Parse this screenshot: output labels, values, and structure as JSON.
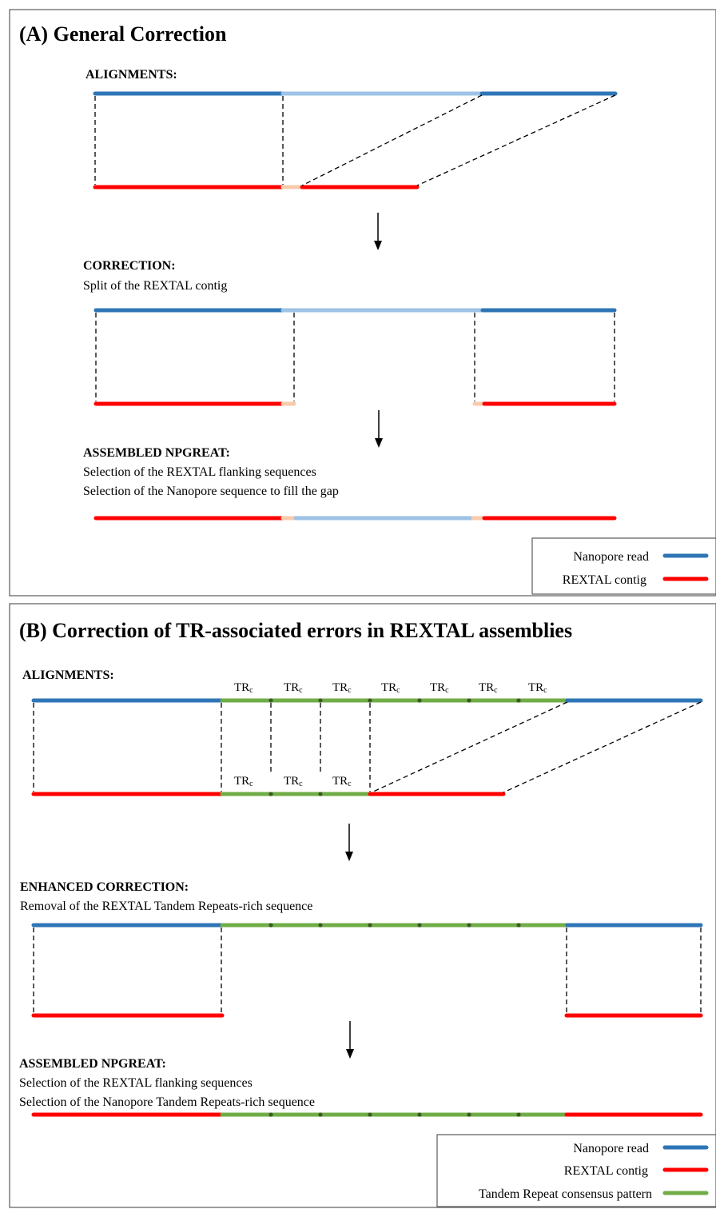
{
  "colors": {
    "nanopore": "#2e75b6",
    "nanopore_light": "#9dc3e6",
    "rextal": "#ff0000",
    "rextal_light": "#f8cbad",
    "tandem_repeat": "#70ad47",
    "tr_node": "#3a5a24",
    "dashed": "#000000",
    "panel_border": "#595959"
  },
  "panel_a": {
    "title": "(A) General Correction",
    "alignments_heading": "ALIGNMENTS:",
    "correction_heading": "CORRECTION:",
    "correction_text": "Split of the REXTAL contig",
    "assembled_heading": "ASSEMBLED NPGREAT:",
    "assembled_line1": "Selection of the REXTAL flanking sequences",
    "assembled_line2": "Selection of the Nanopore sequence to fill the gap",
    "legend": [
      {
        "label": "Nanopore read",
        "color_key": "nanopore"
      },
      {
        "label": "REXTAL contig",
        "color_key": "rextal"
      }
    ]
  },
  "panel_b": {
    "title": "(B) Correction of TR-associated errors in REXTAL assemblies",
    "alignments_heading": "ALIGNMENTS:",
    "tr_label": "TRc",
    "tr_label_main": "TR",
    "tr_label_sub": "c",
    "enhanced_heading": "ENHANCED CORRECTION:",
    "enhanced_text": "Removal of the REXTAL Tandem Repeats-rich sequence",
    "assembled_heading": "ASSEMBLED NPGREAT:",
    "assembled_line1": "Selection of the REXTAL flanking sequences",
    "assembled_line2": "Selection of the Nanopore Tandem Repeats-rich sequence",
    "legend": [
      {
        "label": "Nanopore read",
        "color_key": "nanopore"
      },
      {
        "label": "REXTAL contig",
        "color_key": "rextal"
      },
      {
        "label": "Tandem Repeat consensus pattern",
        "color_key": "tandem_repeat"
      }
    ]
  }
}
